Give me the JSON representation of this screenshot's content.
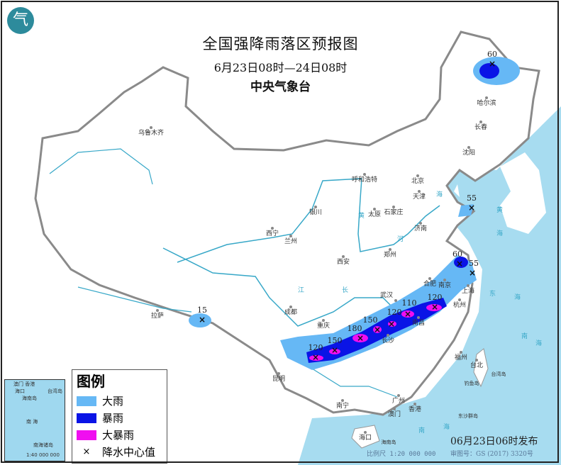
{
  "header": {
    "title": "全国强降雨落区预报图",
    "period": "6月23日08时—24日08时",
    "issuer": "中央气象台",
    "logo_text": "气"
  },
  "colors": {
    "heavy_rain": "#66b8f5",
    "rainstorm": "#0a14e6",
    "heavy_rainstorm": "#f00ef0",
    "sea": "#a7dcf0",
    "river": "#38a8c8",
    "border": "#8a8a8a"
  },
  "legend": {
    "title": "图例",
    "items": [
      {
        "label": "大雨",
        "color": "#66b8f5"
      },
      {
        "label": "暴雨",
        "color": "#0a14e6"
      },
      {
        "label": "大暴雨",
        "color": "#f00ef0"
      },
      {
        "label": "降水中心值",
        "symbol": "×"
      }
    ]
  },
  "cities": [
    "乌鲁木齐",
    "哈尔滨",
    "长春",
    "沈阳",
    "北京",
    "天津",
    "呼和浩特",
    "石家庄",
    "太原",
    "济南",
    "银川",
    "西宁",
    "兰州",
    "西安",
    "郑州",
    "合肥",
    "南京",
    "上海",
    "杭州",
    "武汉",
    "南昌",
    "长沙",
    "成都",
    "重庆",
    "拉萨",
    "昆明",
    "南宁",
    "广州",
    "香港",
    "澳门",
    "福州",
    "台北",
    "海口"
  ],
  "islands": [
    "台湾岛",
    "海南岛",
    "钓鱼岛",
    "东沙群岛"
  ],
  "rivers": [
    "黄",
    "河",
    "长",
    "江",
    "海",
    "黄",
    "海",
    "东",
    "海",
    "南",
    "海",
    "南",
    "海"
  ],
  "rain_centers": [
    "120",
    "150",
    "180",
    "150",
    "120",
    "110",
    "120",
    "60",
    "55",
    "60",
    "55",
    "15"
  ],
  "inset": {
    "labels": [
      "澳门 香港",
      "海口",
      "海南岛",
      "台湾岛",
      "南 海",
      "南海诸岛",
      "1:40 000 000"
    ]
  },
  "footer": {
    "issued": "06月23日06时发布",
    "scale": "比例尺 1:20 000 000",
    "map_no": "审图号：GS (2017) 3320号"
  }
}
